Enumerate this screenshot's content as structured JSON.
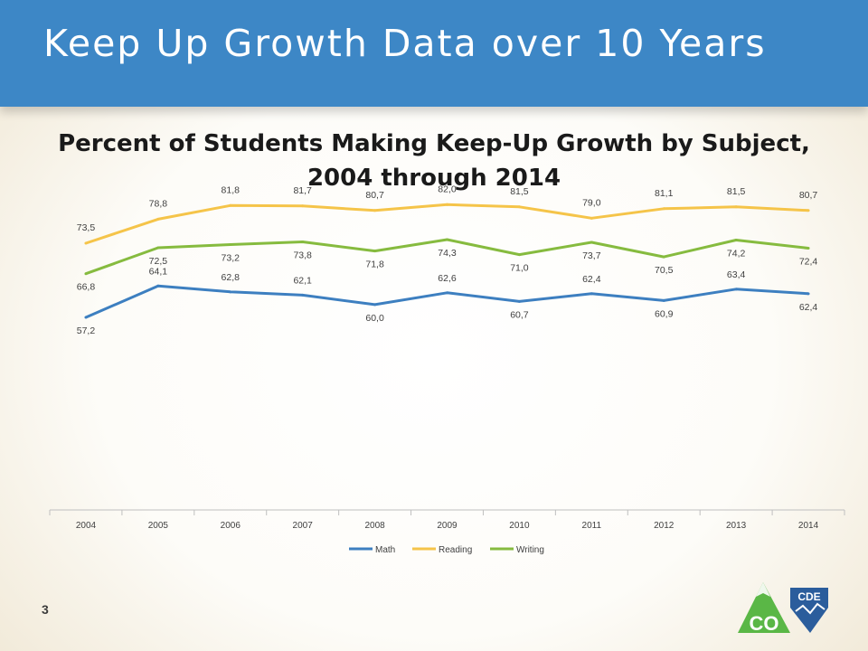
{
  "banner": {
    "title": "Keep Up Growth Data over 10 Years"
  },
  "chart_title_line1": "Percent of Students Making Keep-Up Growth by Subject,",
  "chart_title_line2": "2004 through 2014",
  "slide_number": "3",
  "logo": {
    "left_text": "CO",
    "right_text": "CDE"
  },
  "colors": {
    "banner": "#3d87c6",
    "Math": "#3d7fc0",
    "Reading": "#f5c449",
    "Writing": "#86bb3f"
  },
  "chart_data": {
    "type": "line",
    "title": "Percent of Students Making Keep-Up Growth by Subject, 2004 through 2014",
    "categories": [
      "2004",
      "2005",
      "2006",
      "2007",
      "2008",
      "2009",
      "2010",
      "2011",
      "2012",
      "2013",
      "2014"
    ],
    "series": [
      {
        "name": "Math",
        "values": [
          57.2,
          64.1,
          62.8,
          62.1,
          60.0,
          62.6,
          60.7,
          62.4,
          60.9,
          63.4,
          62.4
        ],
        "labels": [
          "57,2",
          "64,1",
          "62,8",
          "62,1",
          "60,0",
          "62,6",
          "60,7",
          "62,4",
          "60,9",
          "63,4",
          "62,4"
        ]
      },
      {
        "name": "Reading",
        "values": [
          73.5,
          78.8,
          81.8,
          81.7,
          80.7,
          82.0,
          81.5,
          79.0,
          81.1,
          81.5,
          80.7
        ],
        "labels": [
          "73,5",
          "78,8",
          "81,8",
          "81,7",
          "80,7",
          "82,0",
          "81,5",
          "79,0",
          "81,1",
          "81,5",
          "80,7"
        ]
      },
      {
        "name": "Writing",
        "values": [
          66.8,
          72.5,
          73.2,
          73.8,
          71.8,
          74.3,
          71.0,
          73.7,
          70.5,
          74.2,
          72.4
        ],
        "labels": [
          "66,8",
          "72,5",
          "73,2",
          "73,8",
          "71,8",
          "74,3",
          "71,0",
          "73,7",
          "70,5",
          "74,2",
          "72,4"
        ]
      }
    ],
    "legend": "bottom",
    "grid": false,
    "ylabel": "",
    "xlabel": ""
  }
}
